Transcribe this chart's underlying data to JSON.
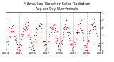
{
  "title": "Milwaukee Weather Solar Radiation",
  "subtitle": "Avg per Day W/m²/minute",
  "dot_color_main": "#ff0000",
  "dot_color_secondary": "#000000",
  "background_color": "#ffffff",
  "grid_color": "#b0b0b0",
  "ylim": [
    0,
    1.0
  ],
  "num_years": 7,
  "title_fontsize": 3.8,
  "tick_fontsize": 2.8,
  "monthly_base": [
    0.13,
    0.2,
    0.38,
    0.52,
    0.62,
    0.68,
    0.65,
    0.57,
    0.4,
    0.25,
    0.13,
    0.1
  ],
  "noise_std": 0.1,
  "dot_size": 1.2,
  "start_year": 2004,
  "vgrid_positions": [
    1,
    2,
    3,
    4,
    5,
    6
  ],
  "ytick_vals": [
    0.0,
    0.2,
    0.4,
    0.6,
    0.8,
    1.0
  ],
  "ytick_labels": [
    "0",
    ".2",
    ".4",
    ".6",
    ".8",
    "1"
  ]
}
